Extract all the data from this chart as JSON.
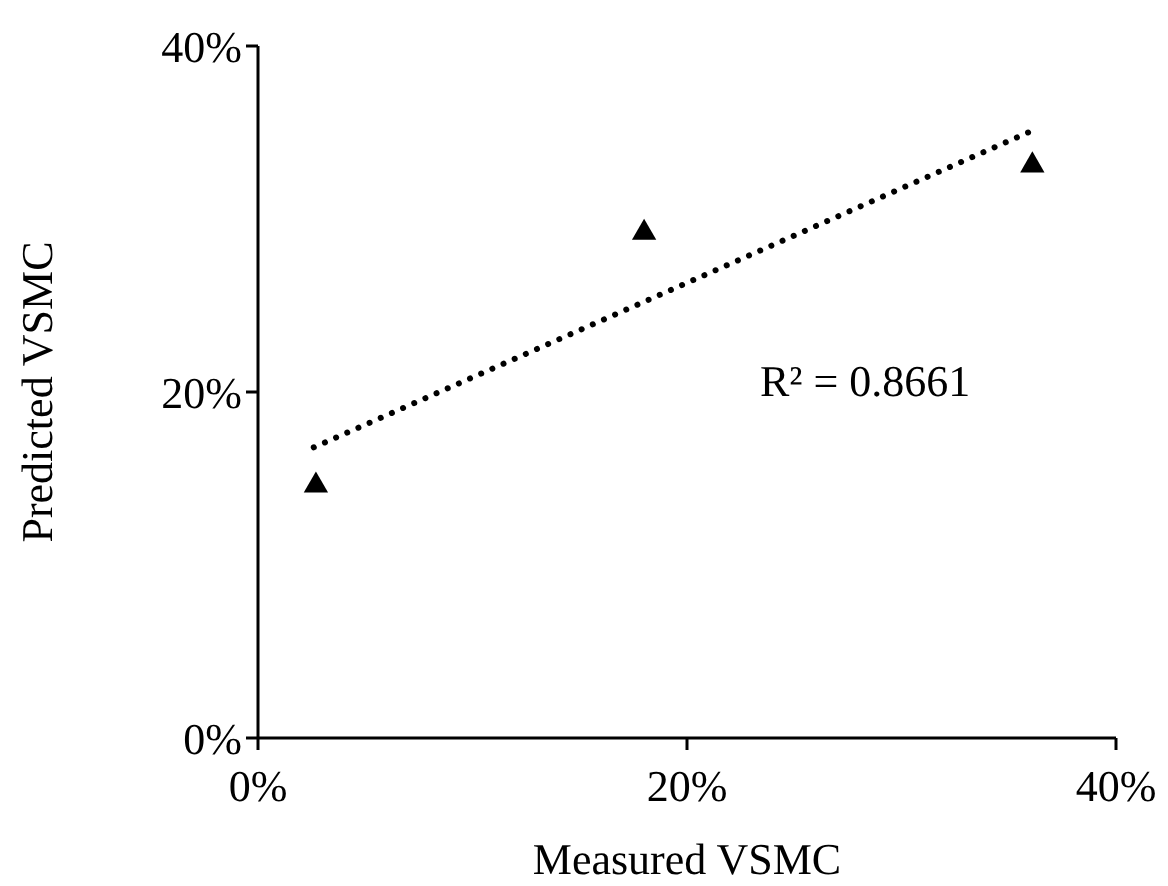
{
  "chart_data": {
    "type": "scatter",
    "xlabel": "Measured VSMC",
    "ylabel": "Predicted VSMC",
    "xlim": [
      0,
      40
    ],
    "ylim": [
      0,
      40
    ],
    "xticks": [
      {
        "value": 0,
        "label": "0%"
      },
      {
        "value": 20,
        "label": "20%"
      },
      {
        "value": 40,
        "label": "40%"
      }
    ],
    "yticks": [
      {
        "value": 0,
        "label": "0%"
      },
      {
        "value": 20,
        "label": "20%"
      },
      {
        "value": 40,
        "label": "40%"
      }
    ],
    "grid": false,
    "legend": false,
    "marker": "triangle",
    "series": [
      {
        "type": "scatter",
        "color": "#000000",
        "x": [
          2.7,
          18.0,
          36.1
        ],
        "values": [
          14.6,
          29.2,
          33.1
        ]
      },
      {
        "type": "line",
        "color": "#000000",
        "line_style": "dotted",
        "marker": "none",
        "x": [
          2.6,
          35.9
        ],
        "values": [
          16.8,
          35.0
        ]
      }
    ],
    "annotations": [
      "R² = 0.8661"
    ]
  }
}
